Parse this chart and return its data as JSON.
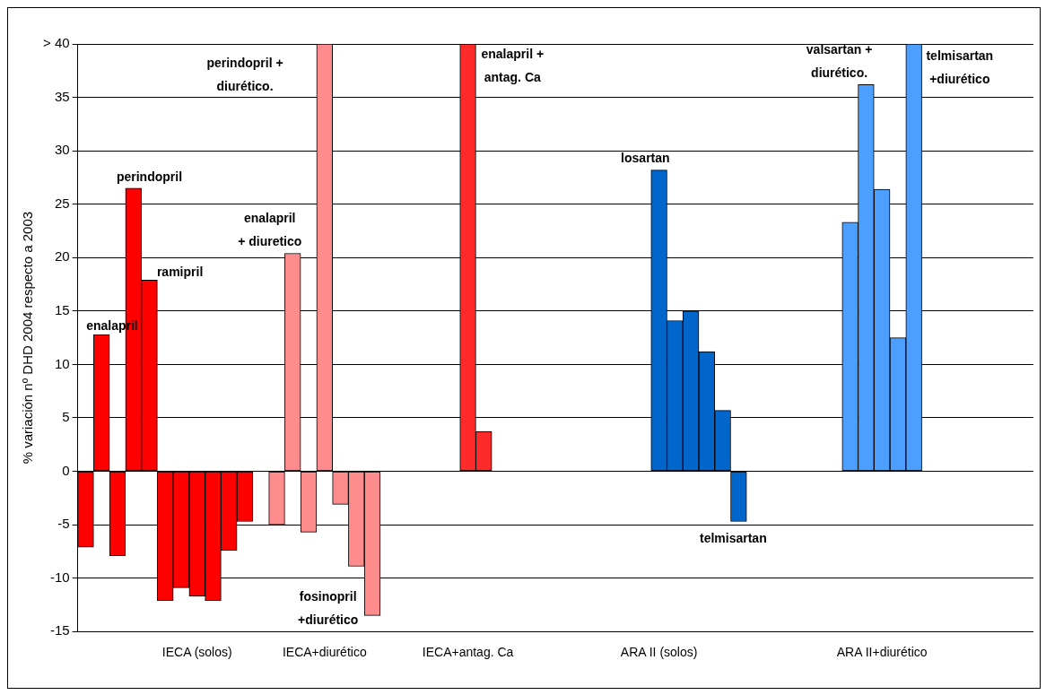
{
  "chart_data": {
    "type": "bar",
    "ylabel": "% variación nº DHD 2004 respecto a 2003",
    "categories": [
      null,
      null,
      null,
      null,
      null,
      null,
      null,
      "IECA (solos)",
      null,
      null,
      null,
      null,
      null,
      null,
      null,
      "IECA+diurético",
      null,
      null,
      null,
      null,
      null,
      null,
      null,
      null,
      "IECA+antag. Ca",
      null,
      null,
      null,
      null,
      null,
      null,
      null,
      null,
      null,
      null,
      null,
      "ARA II (solos)",
      null,
      null,
      null,
      null,
      null,
      null,
      null,
      null,
      null,
      null,
      null,
      null,
      null,
      "ARA II+diurético",
      null,
      null,
      null,
      null,
      null,
      null,
      null,
      null,
      null
    ],
    "ylim": [
      -15,
      40
    ],
    "yticks": [
      -15,
      -10,
      -5,
      0,
      5,
      10,
      15,
      20,
      25,
      30,
      35,
      {
        "value": 40,
        "label": "> 40"
      }
    ],
    "grid": "y",
    "legend": false,
    "series": [
      {
        "color": "#ff0000",
        "values": [
          -7.1,
          12.8,
          -7.9,
          26.5,
          17.9,
          -12.1,
          -10.9,
          -11.7,
          -12.1,
          -7.4,
          -4.7,
          null,
          null,
          null,
          null,
          null,
          null,
          null,
          null,
          null,
          null,
          null,
          null,
          null,
          null,
          null,
          null,
          null,
          null,
          null,
          null,
          null,
          null,
          null,
          null,
          null,
          null,
          null,
          null,
          null,
          null,
          null,
          null,
          null,
          null,
          null,
          null,
          null,
          null,
          null,
          null,
          null,
          null,
          null,
          null,
          null,
          null,
          null,
          null,
          null
        ]
      },
      {
        "color": "#ff8c8c",
        "values": [
          null,
          null,
          null,
          null,
          null,
          null,
          null,
          null,
          null,
          null,
          null,
          null,
          -5.0,
          20.4,
          -5.7,
          40,
          -3.1,
          -8.9,
          -13.5,
          null,
          null,
          null,
          null,
          null,
          null,
          null,
          null,
          null,
          null,
          null,
          null,
          null,
          null,
          null,
          null,
          null,
          null,
          null,
          null,
          null,
          null,
          null,
          null,
          null,
          null,
          null,
          null,
          null,
          null,
          null,
          null,
          null,
          null,
          null,
          null,
          null,
          null,
          null,
          null,
          null
        ]
      },
      {
        "color": "#ff2a2a",
        "values": [
          null,
          null,
          null,
          null,
          null,
          null,
          null,
          null,
          null,
          null,
          null,
          null,
          null,
          null,
          null,
          null,
          null,
          null,
          null,
          null,
          null,
          null,
          null,
          null,
          40,
          3.7,
          null,
          null,
          null,
          null,
          null,
          null,
          null,
          null,
          null,
          null,
          null,
          null,
          null,
          null,
          null,
          null,
          null,
          null,
          null,
          null,
          null,
          null,
          null,
          null,
          null,
          null,
          null,
          null,
          null,
          null,
          null,
          null,
          null,
          null
        ]
      },
      {
        "color": "#0066cc",
        "values": [
          null,
          null,
          null,
          null,
          null,
          null,
          null,
          null,
          null,
          null,
          null,
          null,
          null,
          null,
          null,
          null,
          null,
          null,
          null,
          null,
          null,
          null,
          null,
          null,
          null,
          null,
          null,
          null,
          null,
          null,
          null,
          null,
          null,
          null,
          null,
          null,
          28.2,
          14.1,
          15.0,
          11.2,
          5.7,
          -4.7,
          null,
          null,
          null,
          null,
          null,
          null,
          null,
          null,
          null,
          null,
          null,
          null,
          null,
          null,
          null,
          null,
          null,
          null
        ]
      },
      {
        "color": "#4d9fff",
        "values": [
          null,
          null,
          null,
          null,
          null,
          null,
          null,
          null,
          null,
          null,
          null,
          null,
          null,
          null,
          null,
          null,
          null,
          null,
          null,
          null,
          null,
          null,
          null,
          null,
          null,
          null,
          null,
          null,
          null,
          null,
          null,
          null,
          null,
          null,
          null,
          null,
          null,
          null,
          null,
          null,
          null,
          null,
          null,
          null,
          null,
          null,
          null,
          null,
          23.3,
          36.2,
          26.4,
          12.5,
          40,
          null,
          null,
          null,
          null,
          null,
          null,
          null
        ]
      }
    ],
    "annotations": [
      "enalapril",
      "perindopril",
      "ramipril",
      "enalapril\n+ diuretico",
      "perindopril +\ndiurético.",
      "fosinopril\n+diurético",
      "enalapril +\nantag. Ca",
      "losartan",
      "telmisartan",
      "valsartan +\ndiurético.",
      "telmisartan\n+diurético"
    ]
  }
}
